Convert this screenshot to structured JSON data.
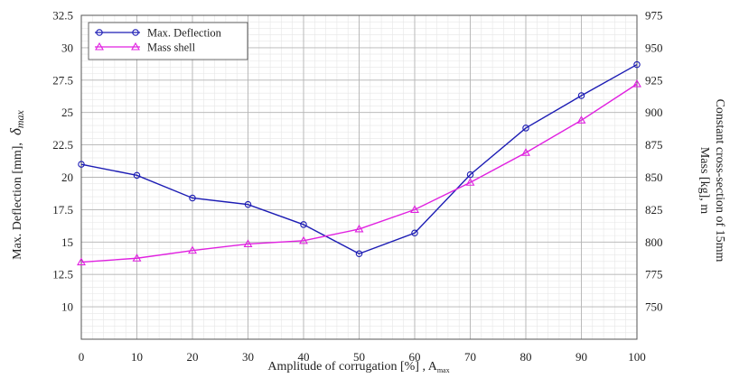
{
  "chart_data": {
    "type": "line",
    "x": [
      0,
      10,
      20,
      30,
      40,
      50,
      60,
      70,
      80,
      90,
      100
    ],
    "xlim": [
      0,
      100
    ],
    "xticks": [
      "0",
      "10",
      "20",
      "30",
      "40",
      "50",
      "60",
      "70",
      "80",
      "90",
      "100"
    ],
    "xlabel": "Amplitude of corrugation [%] , A",
    "xlabel_sub": "max",
    "ylabel": "Max. Deflection [mm],",
    "ylabel_symbol": "δ",
    "ylabel_symbol_sub": "max",
    "ylim": [
      7.5,
      32.5
    ],
    "yticks": [
      "10",
      "12.5",
      "15",
      "17.5",
      "20",
      "22.5",
      "25",
      "27.5",
      "30",
      "32.5"
    ],
    "y2label_line1": "Mass [kg], m",
    "y2label_line2": "Constant cross-section of 15mm",
    "y2lim": [
      725,
      975
    ],
    "y2ticks": [
      "750",
      "775",
      "800",
      "825",
      "850",
      "875",
      "900",
      "925",
      "950",
      "975"
    ],
    "grid": true,
    "legend_position": "top-left",
    "series": [
      {
        "name": "Max. Deflection",
        "axis": "left",
        "color": "#1c1cb4",
        "marker": "circle",
        "values": [
          21.0,
          20.15,
          18.4,
          17.9,
          16.35,
          14.1,
          15.7,
          20.2,
          23.8,
          26.3,
          28.7
        ]
      },
      {
        "name": "Mass shell",
        "axis": "right",
        "color": "#e020e0",
        "marker": "triangle",
        "values": [
          784.5,
          787.5,
          793.5,
          798.5,
          801,
          810,
          825,
          846,
          869,
          894,
          922
        ]
      }
    ]
  }
}
